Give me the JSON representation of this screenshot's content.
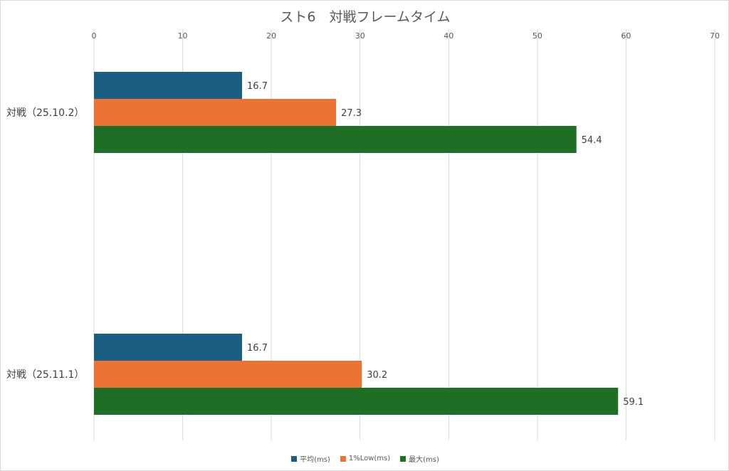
{
  "chart_data": {
    "type": "bar",
    "orientation": "horizontal",
    "title": "スト6　対戦フレームタイム",
    "categories": [
      "対戦（25.10.2）",
      "対戦（25.11.1）"
    ],
    "series": [
      {
        "name": "平均(ms)",
        "color": "#1a5e82",
        "values": [
          16.7,
          16.7
        ]
      },
      {
        "name": "1%Low(ms)",
        "color": "#ea7232",
        "values": [
          27.3,
          30.2
        ]
      },
      {
        "name": "最大(ms)",
        "color": "#1e6e25",
        "values": [
          54.4,
          59.1
        ]
      }
    ],
    "xlim": [
      0,
      70
    ],
    "xticks": [
      0,
      10,
      20,
      30,
      40,
      50,
      60,
      70
    ],
    "x_axis_position": "top",
    "grid": "vertical",
    "legend_position": "bottom"
  }
}
